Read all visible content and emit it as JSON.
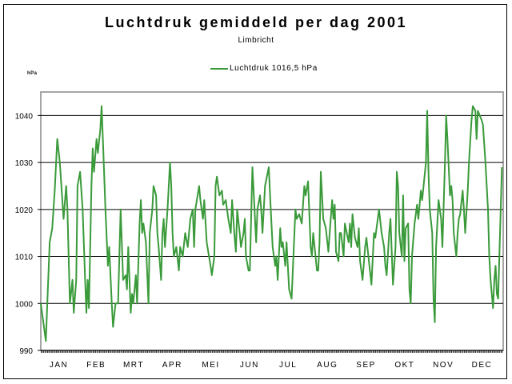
{
  "chart_data": {
    "type": "line",
    "title": "Luchtdruk gemiddeld per dag 2001",
    "subtitle": "Limbricht",
    "ylabel": "hPa",
    "xlabel": "",
    "ylim": [
      990,
      1045
    ],
    "xlim": [
      1,
      365
    ],
    "yticks": [
      990,
      1000,
      1010,
      1020,
      1030,
      1040
    ],
    "grid": true,
    "legend": {
      "placement": "top-center",
      "entries": [
        "Luchtdruk 1016,5 hPa"
      ]
    },
    "color": "#3a9a3a",
    "months": [
      "JAN",
      "FEB",
      "MRT",
      "APR",
      "MEI",
      "JUN",
      "JUL",
      "AUG",
      "SEP",
      "OKT",
      "NOV",
      "DEC"
    ],
    "month_start_days": [
      1,
      32,
      60,
      91,
      121,
      152,
      182,
      213,
      244,
      274,
      305,
      335
    ],
    "series": [
      {
        "name": "Luchtdruk 1016,5 hPa",
        "x": [
          1,
          5,
          8,
          10,
          12,
          14,
          16,
          18,
          19,
          21,
          22,
          23,
          24,
          26,
          27,
          29,
          30,
          32,
          34,
          36,
          37,
          38,
          39,
          41,
          42,
          43,
          45,
          46,
          48,
          49,
          50,
          52,
          54,
          55,
          57,
          58,
          60,
          62,
          64,
          66,
          68,
          69,
          70,
          72,
          73,
          74,
          76,
          77,
          79,
          80,
          81,
          82,
          84,
          86,
          87,
          89,
          90,
          92,
          93,
          94,
          96,
          97,
          98,
          99,
          101,
          103,
          104,
          105,
          106,
          108,
          110,
          111,
          113,
          115,
          117,
          119,
          121,
          122,
          123,
          126,
          127,
          129,
          130,
          132,
          135,
          136,
          138,
          139,
          140,
          142,
          144,
          145,
          147,
          149,
          151,
          152,
          154,
          155,
          156,
          158,
          159,
          161,
          162,
          163,
          165,
          166,
          168,
          169,
          171,
          172,
          174,
          175,
          176,
          178,
          181,
          182,
          184,
          186,
          187,
          188,
          190,
          191,
          192,
          194,
          195,
          197,
          199,
          202,
          203,
          205,
          207,
          209,
          210,
          212,
          214,
          215,
          216,
          219,
          220,
          221,
          222,
          224,
          226,
          228,
          229,
          231,
          232,
          233,
          234,
          236,
          237,
          238,
          240,
          241,
          244,
          245,
          246,
          247,
          249,
          251,
          252,
          253,
          255,
          257,
          258,
          262,
          264,
          265,
          268,
          270,
          272,
          273,
          274,
          276,
          277,
          279,
          281,
          282,
          283,
          284,
          286,
          287,
          288,
          289,
          291,
          292,
          293,
          294,
          296,
          298,
          299,
          301,
          302,
          305,
          306,
          307,
          308,
          310,
          311,
          312,
          313,
          315,
          317,
          318,
          320,
          321,
          322,
          323,
          324,
          325,
          326,
          327,
          329,
          330,
          331,
          332,
          334,
          335,
          336,
          338,
          339,
          341,
          342,
          344,
          345,
          346,
          349,
          350,
          352,
          354,
          355,
          356,
          358,
          359,
          360,
          361,
          362,
          363,
          365
        ],
        "y": [
          1000,
          992,
          1013,
          1016,
          1024,
          1035,
          1030,
          1022,
          1018,
          1025,
          1020,
          1010,
          1000,
          1005,
          998,
          1005,
          1025,
          1028,
          1020,
          1005,
          998,
          1005,
          999,
          1025,
          1033,
          1028,
          1035,
          1032,
          1037,
          1042,
          1035,
          1020,
          1008,
          1012,
          1000,
          995,
          1000,
          1000,
          1020,
          1005,
          1006,
          1003,
          1012,
          998,
          1002,
          1000,
          1006,
          1000,
          1017,
          1022,
          1015,
          1017,
          1013,
          1000,
          1015,
          1020,
          1025,
          1023,
          1015,
          1012,
          1005,
          1015,
          1018,
          1012,
          1020,
          1030,
          1025,
          1015,
          1010,
          1012,
          1007,
          1012,
          1010,
          1015,
          1012,
          1018,
          1020,
          1012,
          1020,
          1025,
          1022,
          1018,
          1022,
          1013,
          1008,
          1006,
          1010,
          1025,
          1027,
          1023,
          1024,
          1021,
          1022,
          1018,
          1015,
          1022,
          1014,
          1011,
          1020,
          1015,
          1012,
          1015,
          1018,
          1010,
          1007,
          1007,
          1029,
          1024,
          1013,
          1020,
          1023,
          1020,
          1015,
          1025,
          1029,
          1023,
          1012,
          1008,
          1010,
          1005,
          1016,
          1012,
          1013,
          1008,
          1013,
          1003,
          1001,
          1020,
          1018,
          1019,
          1017,
          1025,
          1023,
          1026,
          1012,
          1010,
          1015,
          1007,
          1007,
          1013,
          1028,
          1018,
          1016,
          1011,
          1015,
          1022,
          1018,
          1021,
          1011,
          1009,
          1015,
          1015,
          1010,
          1017,
          1013,
          1017,
          1012,
          1019,
          1014,
          1012,
          1016,
          1009,
          1005,
          1012,
          1014,
          1004,
          1015,
          1014,
          1020,
          1015,
          1012,
          1008,
          1006,
          1015,
          1018,
          1004,
          1012,
          1028,
          1025,
          1015,
          1010,
          1023,
          1009,
          1016,
          1017,
          1003,
          1000,
          1010,
          1017,
          1021,
          1018,
          1024,
          1022,
          1030,
          1041,
          1028,
          1020,
          1015,
          1001,
          996,
          1012,
          1022,
          1018,
          1012,
          1030,
          1040,
          1035,
          1029,
          1023,
          1025,
          1022,
          1015,
          1010,
          1015,
          1018,
          1019,
          1024,
          1020,
          1015,
          1024,
          1030,
          1039,
          1042,
          1041,
          1035,
          1041,
          1039,
          1038,
          1030,
          1020,
          1010,
          1005,
          999,
          1005,
          1008,
          1002,
          1001,
          1010,
          1029
        ]
      }
    ]
  }
}
